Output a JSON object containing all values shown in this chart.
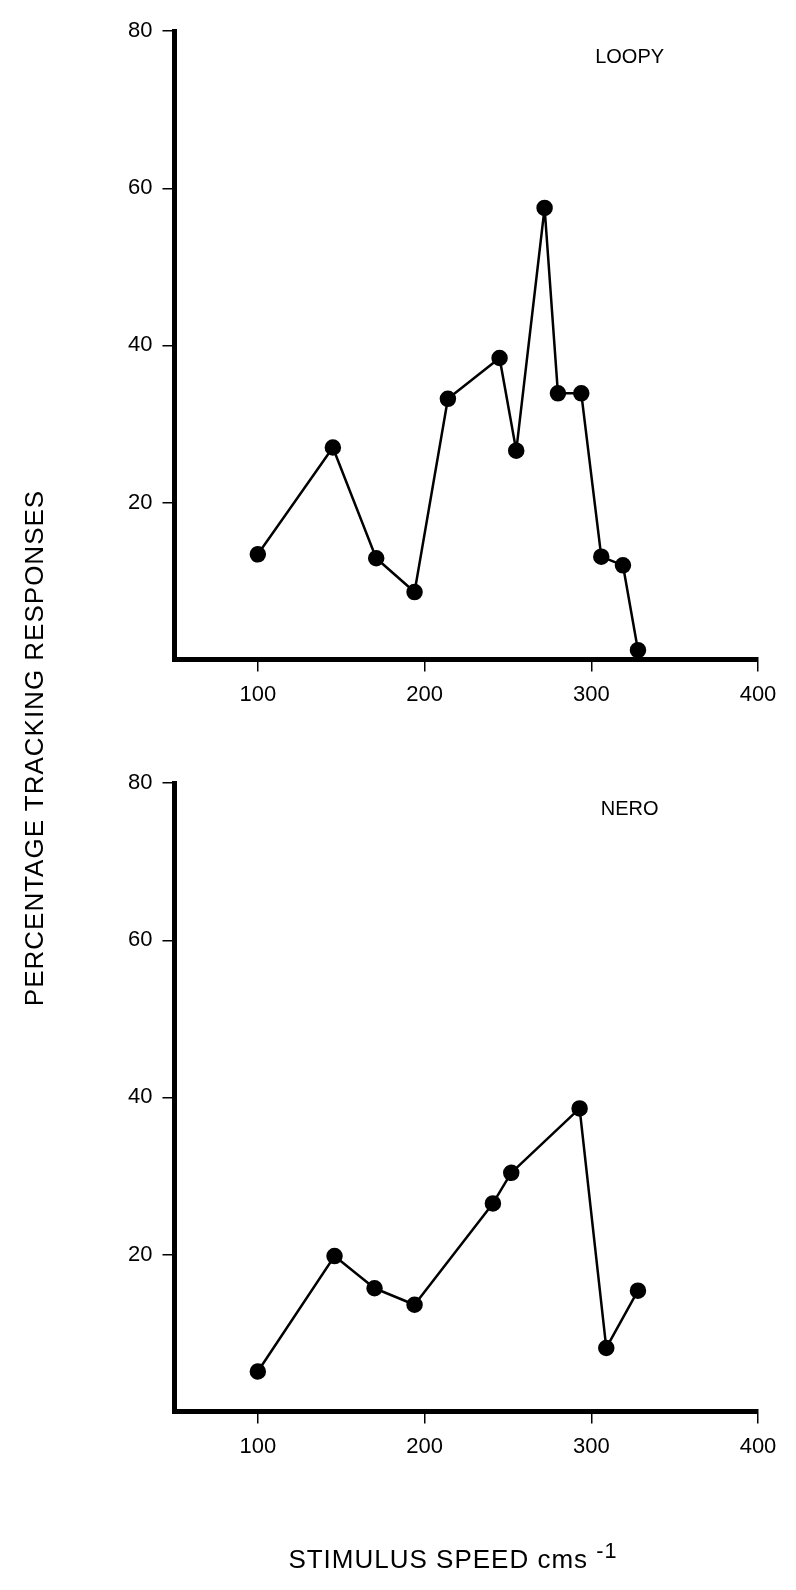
{
  "chart_data": [
    {
      "type": "line",
      "title": "LOOPY",
      "ylabel": "PERCENTAGE TRACKING RESPONSES",
      "marker": "circle",
      "line_style": "solid",
      "grid": false,
      "legend": false,
      "series": [
        {
          "color": "#000000",
          "x": [
            100,
            145,
            171,
            194,
            214,
            245,
            255,
            272,
            280,
            294,
            306,
            319,
            328
          ],
          "values": [
            13.4,
            27,
            12.9,
            8.6,
            33.2,
            38.4,
            26.6,
            57.5,
            33.9,
            33.9,
            13.1,
            12,
            1.2
          ]
        }
      ],
      "xlim": [
        50,
        400
      ],
      "xticks": [
        100,
        200,
        300,
        400
      ],
      "ylim": [
        0,
        80
      ],
      "yticks": [
        20,
        40,
        60,
        80
      ]
    },
    {
      "type": "line",
      "title": "NERO",
      "xlabel": "STIMULUS SPEED cms $^{-1}$",
      "marker": "circle",
      "line_style": "solid",
      "grid": false,
      "legend": false,
      "series": [
        {
          "color": "#000000",
          "x": [
            100,
            146,
            170,
            194,
            241,
            252,
            293,
            309,
            328
          ],
          "values": [
            5.1,
            19.8,
            15.7,
            13.6,
            26.5,
            30.4,
            38.6,
            8.1,
            15.4
          ]
        }
      ],
      "xlim": [
        50,
        400
      ],
      "xticks": [
        100,
        200,
        300,
        400
      ],
      "ylim": [
        0,
        80
      ],
      "yticks": [
        20,
        40,
        60,
        80
      ]
    }
  ]
}
